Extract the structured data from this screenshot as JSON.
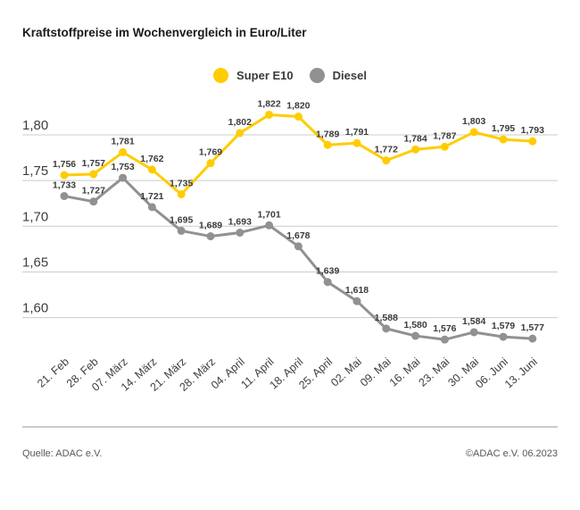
{
  "title": "Kraftstoffpreise im Wochenvergleich in Euro/Liter",
  "legend": {
    "items": [
      {
        "label": "Super E10",
        "color": "#FFCC00"
      },
      {
        "label": "Diesel",
        "color": "#919191"
      }
    ]
  },
  "chart_data": {
    "type": "line",
    "title": "Kraftstoffpreise im Wochenvergleich in Euro/Liter",
    "categories": [
      "21. Feb",
      "28. Feb",
      "07. März",
      "14. März",
      "21. März",
      "28. März",
      "04. April",
      "11. April",
      "18. April",
      "25. April",
      "02. Mai",
      "09. Mai",
      "16. Mai",
      "23. Mai",
      "30. Mai",
      "06. Juni",
      "13. Juni"
    ],
    "series": [
      {
        "name": "Super E10",
        "color": "#FFCC00",
        "values": [
          1.756,
          1.757,
          1.781,
          1.762,
          1.735,
          1.769,
          1.802,
          1.822,
          1.82,
          1.789,
          1.791,
          1.772,
          1.784,
          1.787,
          1.803,
          1.795,
          1.793
        ]
      },
      {
        "name": "Diesel",
        "color": "#919191",
        "values": [
          1.733,
          1.727,
          1.753,
          1.721,
          1.695,
          1.689,
          1.693,
          1.701,
          1.678,
          1.639,
          1.618,
          1.588,
          1.58,
          1.576,
          1.584,
          1.579,
          1.577
        ]
      }
    ],
    "ylim": [
      1.56,
      1.83
    ],
    "yticks": [
      1.8,
      1.75,
      1.7,
      1.65,
      1.6
    ],
    "ytick_labels": [
      "1,80",
      "1,75",
      "1,70",
      "1,65",
      "1,60"
    ],
    "xlabel": "",
    "ylabel": "Euro/Liter",
    "grid": "horizontal",
    "legend_position": "top-center",
    "value_labels": true,
    "decimal": "comma",
    "grid_color": "#cccccc",
    "label_color": "#3b3b3b",
    "axis_text_color": "#3d3d3d"
  },
  "footer": {
    "source": "Quelle: ADAC e.V.",
    "copyright": "©ADAC e.V. 06.2023"
  }
}
